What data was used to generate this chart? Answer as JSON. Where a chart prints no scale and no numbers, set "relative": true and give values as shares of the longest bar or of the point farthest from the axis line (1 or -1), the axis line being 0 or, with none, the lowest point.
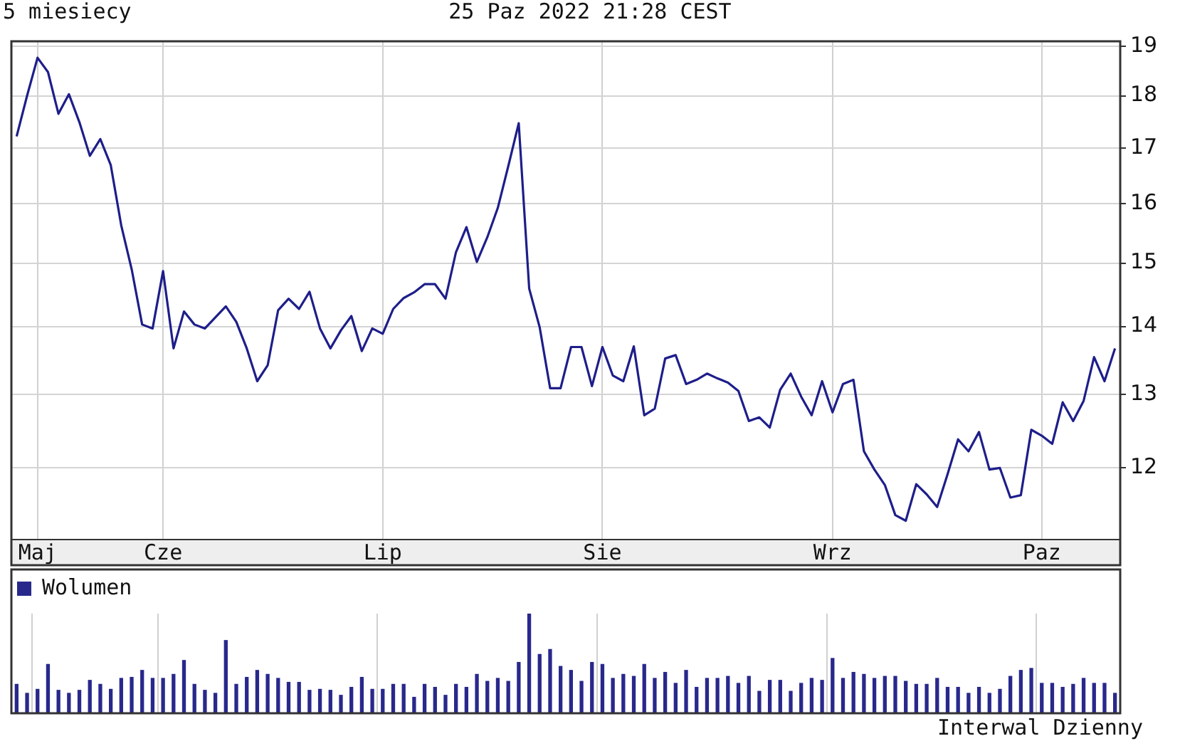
{
  "chart_data": [
    {
      "type": "line",
      "title": "5 miesiecy",
      "subtitle": "25 Paz 2022 21:28 CEST",
      "categories": [
        null,
        null,
        "Maj",
        null,
        null,
        null,
        null,
        null,
        null,
        null,
        null,
        null,
        null,
        null,
        "Cze",
        null,
        null,
        null,
        null,
        null,
        null,
        null,
        null,
        null,
        null,
        null,
        null,
        null,
        null,
        null,
        null,
        null,
        null,
        null,
        null,
        "Lip",
        null,
        null,
        null,
        null,
        null,
        null,
        null,
        null,
        null,
        null,
        null,
        null,
        null,
        null,
        null,
        null,
        null,
        null,
        null,
        null,
        "Sie",
        null,
        null,
        null,
        null,
        null,
        null,
        null,
        null,
        null,
        null,
        null,
        null,
        null,
        null,
        null,
        null,
        null,
        null,
        null,
        null,
        null,
        "Wrz",
        null,
        null,
        null,
        null,
        null,
        null,
        null,
        null,
        null,
        null,
        null,
        null,
        null,
        null,
        null,
        null,
        null,
        null,
        null,
        "Paz",
        null,
        null,
        null,
        null,
        null,
        null,
        null
      ],
      "series": [
        {
          "color": "#1e1e8a",
          "values": [
            17.22,
            18.0,
            18.76,
            18.47,
            17.65,
            18.03,
            17.49,
            16.86,
            17.17,
            16.69,
            15.63,
            14.9,
            14.03,
            13.97,
            14.87,
            13.67,
            14.23,
            14.03,
            13.97,
            14.14,
            14.31,
            14.07,
            13.67,
            13.19,
            13.42,
            14.25,
            14.43,
            14.27,
            14.54,
            13.97,
            13.67,
            13.94,
            14.16,
            13.63,
            13.97,
            13.89,
            14.27,
            14.44,
            14.53,
            14.66,
            14.66,
            14.43,
            15.18,
            15.6,
            15.02,
            15.43,
            15.93,
            16.67,
            17.47,
            14.59,
            13.99,
            13.09,
            13.09,
            13.69,
            13.69,
            13.12,
            13.69,
            13.27,
            13.19,
            13.7,
            12.71,
            12.8,
            13.52,
            13.57,
            13.15,
            13.21,
            13.3,
            13.23,
            13.17,
            13.05,
            12.63,
            12.68,
            12.54,
            13.07,
            13.3,
            12.97,
            12.71,
            13.19,
            12.75,
            13.15,
            13.21,
            12.22,
            11.98,
            11.78,
            11.4,
            11.33,
            11.79,
            11.66,
            11.5,
            11.92,
            12.38,
            12.22,
            12.48,
            11.98,
            12.0,
            11.62,
            11.65,
            12.51,
            12.43,
            12.32,
            12.89,
            12.63,
            12.91,
            13.54,
            13.19,
            13.67
          ]
        }
      ],
      "ylim": [
        11.1,
        19.1
      ],
      "yticks": [
        12,
        13,
        14,
        15,
        16,
        17,
        18,
        19
      ],
      "log": true,
      "grid": true
    },
    {
      "type": "bar",
      "relative": true,
      "legend": "top left",
      "tick_labels": false,
      "grid": "x",
      "annotations": [
        "Interwal Dzienny"
      ],
      "categories": [
        null,
        null,
        null,
        null,
        null,
        null,
        null,
        null,
        null,
        null,
        null,
        null,
        null,
        null,
        null,
        null,
        null,
        null,
        null,
        null,
        null,
        null,
        null,
        null,
        null,
        null,
        null,
        null,
        null,
        null,
        null,
        null,
        null,
        null,
        null,
        null,
        null,
        null,
        null,
        null,
        null,
        null,
        null,
        null,
        null,
        null,
        null,
        null,
        null,
        null,
        null,
        null,
        null,
        null,
        null,
        null,
        null,
        null,
        null,
        null,
        null,
        null,
        null,
        null,
        null,
        null,
        null,
        null,
        null,
        null,
        null,
        null,
        null,
        null,
        null,
        null,
        null,
        null,
        null,
        null,
        null,
        null,
        null,
        null,
        null,
        null,
        null,
        null,
        null,
        null,
        null,
        null,
        null,
        null,
        null,
        null,
        null,
        null,
        null,
        null,
        null,
        null,
        null,
        null,
        null,
        null
      ],
      "series": [
        {
          "name": "Wolumen",
          "color": "#28288c",
          "values": [
            0.29,
            0.2,
            0.24,
            0.49,
            0.23,
            0.2,
            0.23,
            0.33,
            0.29,
            0.24,
            0.35,
            0.36,
            0.43,
            0.35,
            0.35,
            0.39,
            0.53,
            0.29,
            0.23,
            0.2,
            0.73,
            0.29,
            0.36,
            0.43,
            0.39,
            0.35,
            0.31,
            0.31,
            0.23,
            0.24,
            0.23,
            0.18,
            0.26,
            0.36,
            0.24,
            0.24,
            0.29,
            0.29,
            0.16,
            0.29,
            0.26,
            0.18,
            0.29,
            0.26,
            0.39,
            0.32,
            0.35,
            0.32,
            0.51,
            1,
            0.59,
            0.64,
            0.47,
            0.43,
            0.32,
            0.51,
            0.49,
            0.35,
            0.39,
            0.37,
            0.49,
            0.35,
            0.41,
            0.3,
            0.43,
            0.26,
            0.35,
            0.35,
            0.37,
            0.3,
            0.37,
            0.22,
            0.33,
            0.33,
            0.22,
            0.3,
            0.35,
            0.33,
            0.55,
            0.35,
            0.41,
            0.39,
            0.35,
            0.37,
            0.37,
            0.32,
            0.29,
            0.29,
            0.35,
            0.26,
            0.26,
            0.2,
            0.26,
            0.2,
            0.24,
            0.37,
            0.43,
            0.45,
            0.3,
            0.3,
            0.26,
            0.29,
            0.35,
            0.3,
            0.3,
            0.2
          ]
        }
      ]
    }
  ]
}
